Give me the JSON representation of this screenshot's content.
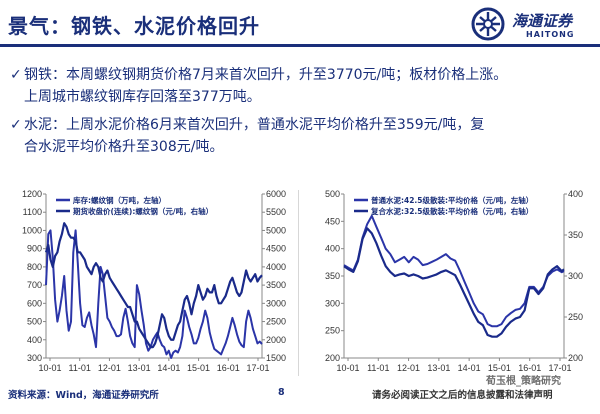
{
  "header": {
    "title": "景气：钢铁、水泥价格回升",
    "logo_cn": "海通证券",
    "logo_en": "HAITONG"
  },
  "bullets": [
    {
      "mark": "✓",
      "lines": [
        "钢铁：本周螺纹钢期货价格7月来首次回升，升至3770元/吨；板材价格上涨。",
        "上周城市螺纹钢库存回落至377万吨。"
      ]
    },
    {
      "mark": "✓",
      "lines": [
        "水泥：上周水泥价格6月来首次回升，普通水泥平均价格升至359元/吨，复",
        "合水泥平均价格升至308元/吨。"
      ]
    }
  ],
  "chart_data": [
    {
      "type": "line",
      "x_ticks": [
        "10-01",
        "11-01",
        "12-01",
        "13-01",
        "14-01",
        "15-01",
        "16-01",
        "17-01"
      ],
      "y_left_ticks": [
        "300",
        "400",
        "500",
        "600",
        "700",
        "800",
        "900",
        "1000",
        "1100",
        "1200"
      ],
      "y_right_ticks": [
        "1500",
        "2000",
        "2500",
        "3000",
        "3500",
        "4000",
        "4500",
        "5000",
        "5500",
        "6000"
      ],
      "ylim_left": [
        300,
        1200
      ],
      "ylim_right": [
        1500,
        6000
      ],
      "legend": [
        "库存:螺纹钢（万吨，左轴）",
        "期货收盘价(连续):螺纹钢（元/吨，右轴）"
      ],
      "series": [
        {
          "name": "库存:螺纹钢（万吨，左轴）",
          "axis": "left",
          "color": "#2b35a8",
          "x": [
            0,
            1,
            2,
            3,
            4,
            5,
            6,
            7,
            8,
            9,
            10,
            11,
            12,
            13,
            14,
            15,
            16,
            17,
            18,
            19,
            20,
            21,
            22,
            23,
            24,
            25,
            26,
            27,
            28,
            29,
            30,
            31,
            32,
            33,
            34,
            35,
            36,
            37,
            38,
            39,
            40,
            41,
            42,
            43,
            44,
            45,
            46,
            47,
            48,
            49,
            50,
            51,
            52,
            53,
            54,
            55,
            56,
            57,
            58,
            59,
            60,
            61,
            62,
            63,
            64,
            65,
            66,
            67,
            68,
            69,
            70,
            71,
            72,
            73,
            74,
            75,
            76,
            77,
            78,
            79,
            80,
            81,
            82,
            83,
            84,
            85,
            86,
            87,
            88,
            89,
            90,
            91,
            92,
            93,
            94,
            95
          ],
          "values": [
            700,
            980,
            1000,
            850,
            620,
            500,
            560,
            640,
            750,
            560,
            450,
            500,
            880,
            1000,
            820,
            600,
            480,
            470,
            520,
            550,
            480,
            430,
            360,
            600,
            800,
            760,
            640,
            520,
            500,
            470,
            450,
            420,
            420,
            430,
            520,
            570,
            500,
            420,
            380,
            360,
            700,
            650,
            560,
            480,
            380,
            340,
            360,
            400,
            420,
            440,
            400,
            370,
            360,
            320,
            340,
            300,
            330,
            340,
            330,
            360,
            420,
            560,
            520,
            470,
            430,
            380,
            380,
            410,
            460,
            500,
            560,
            520,
            440,
            390,
            350,
            340,
            330,
            320,
            350,
            380,
            420,
            470,
            520,
            480,
            430,
            390,
            370,
            360,
            500,
            560,
            520,
            460,
            420,
            380,
            390,
            377
          ]
        },
        {
          "name": "期货收盘价(连续):螺纹钢（元/吨，右轴）",
          "axis": "right",
          "color": "#1a2a8a",
          "x": [
            0,
            1,
            2,
            3,
            4,
            5,
            6,
            7,
            8,
            9,
            10,
            11,
            12,
            13,
            14,
            15,
            16,
            17,
            18,
            19,
            20,
            21,
            22,
            23,
            24,
            25,
            26,
            27,
            28,
            29,
            30,
            31,
            32,
            33,
            34,
            35,
            36,
            37,
            38,
            39,
            40,
            41,
            42,
            43,
            44,
            45,
            46,
            47,
            48,
            49,
            50,
            51,
            52,
            53,
            54,
            55,
            56,
            57,
            58,
            59,
            60,
            61,
            62,
            63,
            64,
            65,
            66,
            67,
            68,
            69,
            70,
            71,
            72,
            73,
            74,
            75,
            76,
            77,
            78,
            79,
            80,
            81,
            82,
            83,
            84,
            85,
            86,
            87,
            88,
            89,
            90,
            91,
            92,
            93,
            94,
            95
          ],
          "values": [
            4400,
            4600,
            4200,
            4000,
            4300,
            4400,
            4700,
            4900,
            5200,
            5100,
            4900,
            4800,
            4800,
            4700,
            4400,
            4400,
            4300,
            4200,
            4000,
            3900,
            3800,
            4000,
            4100,
            4000,
            3700,
            3600,
            3800,
            3900,
            3700,
            3600,
            3500,
            3400,
            3300,
            3200,
            3100,
            3000,
            2900,
            2900,
            2700,
            2500,
            2500,
            2300,
            2200,
            2100,
            2000,
            1900,
            1800,
            1800,
            1900,
            2100,
            2400,
            2700,
            2600,
            2300,
            2100,
            2000,
            2000,
            2200,
            2400,
            2500,
            2800,
            3100,
            3200,
            3000,
            2700,
            3000,
            3200,
            3500,
            3300,
            3100,
            3200,
            3400,
            3300,
            3300,
            3500,
            3200,
            3000,
            3000,
            3100,
            3200,
            3400,
            3600,
            3700,
            3500,
            3300,
            3200,
            3300,
            3600,
            3900,
            3700,
            3600,
            3700,
            3800,
            3600,
            3700,
            3770
          ]
        }
      ]
    },
    {
      "type": "line",
      "x_ticks": [
        "10-01",
        "11-01",
        "12-01",
        "13-01",
        "14-01",
        "15-01",
        "16-01",
        "17-01"
      ],
      "y_left_ticks": [
        "200",
        "250",
        "300",
        "350",
        "400",
        "450",
        "500"
      ],
      "y_right_ticks": [
        "200",
        "250",
        "300",
        "350",
        "400"
      ],
      "ylim_left": [
        200,
        500
      ],
      "ylim_right": [
        200,
        400
      ],
      "legend": [
        "普通水泥:42.5级散装:平均价格（元/吨，左轴）",
        "复合水泥:32.5级散装:平均价格（元/吨，右轴）"
      ],
      "series": [
        {
          "name": "普通水泥:42.5级散装:平均价格（元/吨，左轴）",
          "axis": "left",
          "color": "#2b35a8",
          "x": [
            0,
            2,
            4,
            6,
            8,
            10,
            12,
            14,
            16,
            18,
            20,
            22,
            24,
            26,
            28,
            30,
            32,
            34,
            36,
            38,
            40,
            42,
            44,
            46,
            48,
            50,
            52,
            54,
            56,
            58,
            60,
            62,
            64,
            66,
            68,
            70,
            72,
            74,
            76,
            78,
            80,
            82,
            84,
            86,
            88,
            90,
            92,
            94,
            95
          ],
          "values": [
            370,
            365,
            360,
            380,
            420,
            445,
            460,
            440,
            420,
            400,
            390,
            375,
            380,
            385,
            375,
            385,
            380,
            370,
            372,
            376,
            380,
            385,
            390,
            382,
            378,
            360,
            340,
            320,
            300,
            285,
            280,
            262,
            258,
            258,
            262,
            275,
            282,
            288,
            290,
            300,
            330,
            330,
            320,
            330,
            350,
            358,
            362,
            357,
            359
          ]
        },
        {
          "name": "复合水泥:32.5级散装:平均价格（元/吨，右轴）",
          "axis": "right",
          "color": "#1a2a8a",
          "x": [
            0,
            2,
            4,
            6,
            8,
            10,
            12,
            14,
            16,
            18,
            20,
            22,
            24,
            26,
            28,
            30,
            32,
            34,
            36,
            38,
            40,
            42,
            44,
            46,
            48,
            50,
            52,
            54,
            56,
            58,
            60,
            62,
            64,
            66,
            68,
            70,
            72,
            74,
            76,
            78,
            80,
            82,
            84,
            86,
            88,
            90,
            92,
            94,
            95
          ],
          "values": [
            312,
            308,
            305,
            318,
            345,
            358,
            352,
            340,
            325,
            312,
            305,
            300,
            302,
            303,
            300,
            302,
            300,
            297,
            298,
            300,
            302,
            305,
            307,
            304,
            301,
            290,
            278,
            266,
            254,
            244,
            240,
            228,
            226,
            226,
            230,
            238,
            244,
            248,
            250,
            258,
            285,
            285,
            278,
            285,
            302,
            308,
            312,
            306,
            308
          ]
        }
      ]
    }
  ],
  "footer": {
    "source": "资料来源：Wind，海通证券研究所",
    "page": "8",
    "disclaimer": "请务必阅读正文之后的信息披露和法律声明",
    "watermark": "荀玉根_策略研究"
  }
}
